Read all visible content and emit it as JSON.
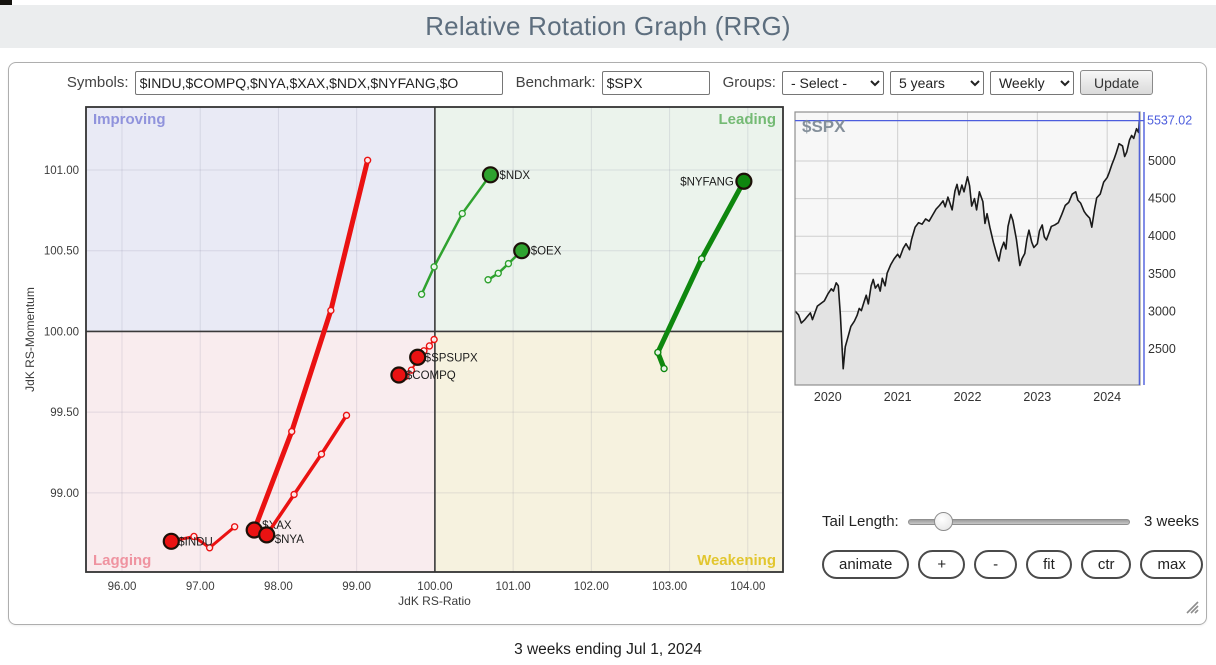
{
  "header": {
    "title": "Relative Rotation Graph (RRG)"
  },
  "toolbar": {
    "symbols_label": "Symbols:",
    "symbols_value": "$INDU,$COMPQ,$NYA,$XAX,$NDX,$NYFANG,$O",
    "benchmark_label": "Benchmark:",
    "benchmark_value": "$SPX",
    "groups_label": "Groups:",
    "groups_value": "- Select -",
    "period_value": "5 years",
    "frequency_value": "Weekly",
    "update_label": "Update"
  },
  "controls": {
    "tail_length_label": "Tail Length:",
    "tail_length_value": "3 weeks",
    "buttons": [
      "animate",
      "+",
      "-",
      "fit",
      "ctr",
      "max"
    ]
  },
  "caption": "3 weeks ending Jul 1, 2024",
  "chart_data": [
    {
      "type": "scatter",
      "title": "Relative Rotation Graph",
      "xlabel": "JdK RS-Ratio",
      "ylabel": "JdK RS-Momentum",
      "xlim": [
        95.54,
        104.45
      ],
      "ylim": [
        98.51,
        101.39
      ],
      "xticks": [
        96,
        97,
        98,
        99,
        100,
        101,
        102,
        103,
        104
      ],
      "yticks": [
        99,
        99.5,
        100,
        100.5,
        101
      ],
      "center": [
        100,
        100
      ],
      "grid": true,
      "quadrants": [
        {
          "name": "improving",
          "label": "Improving",
          "bg": "#e9eaf5",
          "label_color": "#9093dc",
          "corner": "tl"
        },
        {
          "name": "leading",
          "label": "Leading",
          "bg": "#ebf3ec",
          "label_color": "#74ba74",
          "corner": "tr"
        },
        {
          "name": "lagging",
          "label": "Lagging",
          "bg": "#f9ecee",
          "label_color": "#ef93a0",
          "corner": "bl"
        },
        {
          "name": "weakening",
          "label": "Weakening",
          "bg": "#f6f2df",
          "label_color": "#e2c62e",
          "corner": "br"
        }
      ],
      "series": [
        {
          "symbol": "$INDU",
          "color": "#ea1212",
          "width": 3,
          "anchor": "start",
          "label_dx": 7,
          "label_dy": 4,
          "points": [
            [
              97.44,
              98.79
            ],
            [
              97.12,
              98.66
            ],
            [
              96.92,
              98.73
            ],
            [
              96.63,
              98.7
            ]
          ]
        },
        {
          "symbol": "$XAX",
          "color": "#ea1212",
          "width": 5,
          "anchor": "start",
          "label_dx": 8,
          "label_dy": -1,
          "points": [
            [
              99.14,
              101.06
            ],
            [
              98.67,
              100.13
            ],
            [
              98.17,
              99.38
            ],
            [
              97.69,
              98.77
            ]
          ]
        },
        {
          "symbol": "$NYA",
          "color": "#ea1212",
          "width": 3.5,
          "anchor": "start",
          "label_dx": 8,
          "label_dy": 8,
          "points": [
            [
              98.87,
              99.48
            ],
            [
              98.55,
              99.24
            ],
            [
              98.2,
              98.99
            ],
            [
              97.85,
              98.74
            ]
          ]
        },
        {
          "symbol": "$COMPQ",
          "color": "#ea1212",
          "width": 2,
          "anchor": "start",
          "label_dx": 7,
          "label_dy": 4,
          "points": [
            [
              99.76,
              99.81
            ],
            [
              99.7,
              99.76
            ],
            [
              99.62,
              99.72
            ],
            [
              99.54,
              99.73
            ]
          ]
        },
        {
          "symbol": "$SPSUPX",
          "color": "#ea1212",
          "width": 2,
          "anchor": "start",
          "label_dx": 7,
          "label_dy": 4,
          "points": [
            [
              99.99,
              99.95
            ],
            [
              99.93,
              99.91
            ],
            [
              99.86,
              99.88
            ],
            [
              99.78,
              99.84
            ]
          ]
        },
        {
          "symbol": "$NDX",
          "color": "#2fa22f",
          "width": 2.5,
          "anchor": "start",
          "label_dx": 9,
          "label_dy": 4,
          "points": [
            [
              99.83,
              100.23
            ],
            [
              99.99,
              100.4
            ],
            [
              100.35,
              100.73
            ],
            [
              100.71,
              100.97
            ]
          ]
        },
        {
          "symbol": "$OEX",
          "color": "#2fa22f",
          "width": 2.5,
          "anchor": "start",
          "label_dx": 9,
          "label_dy": 4,
          "points": [
            [
              100.68,
              100.32
            ],
            [
              100.81,
              100.36
            ],
            [
              100.94,
              100.42
            ],
            [
              101.11,
              100.5
            ]
          ]
        },
        {
          "symbol": "$NYFANG",
          "color": "#0e870e",
          "width": 5,
          "anchor": "end",
          "label_dx": -10,
          "label_dy": 4,
          "points": [
            [
              102.93,
              99.77
            ],
            [
              102.85,
              99.87
            ],
            [
              103.41,
              100.45
            ],
            [
              103.95,
              100.93
            ]
          ]
        }
      ]
    },
    {
      "type": "area",
      "symbol": "$SPX",
      "price_label": "5537.02",
      "last_price": 5537.02,
      "xticks": [
        2020,
        2021,
        2022,
        2023,
        2024
      ],
      "yticks": [
        2500,
        3000,
        3500,
        4000,
        4500,
        5000
      ],
      "xlim": [
        2019.53,
        2024.47
      ],
      "ylim": [
        2021,
        5652
      ],
      "grid": true,
      "line_color": "#1a1a1a",
      "fill_color": "#e3e3e3",
      "crosshair_color": "#4c5ddd",
      "points": [
        [
          2019.53,
          3005
        ],
        [
          2019.58,
          2955
        ],
        [
          2019.62,
          2845
        ],
        [
          2019.67,
          2890
        ],
        [
          2019.7,
          2925
        ],
        [
          2019.75,
          2980
        ],
        [
          2019.78,
          2890
        ],
        [
          2019.85,
          3070
        ],
        [
          2019.95,
          3140
        ],
        [
          2020.0,
          3230
        ],
        [
          2020.05,
          3300
        ],
        [
          2020.08,
          3270
        ],
        [
          2020.12,
          3380
        ],
        [
          2020.15,
          3340
        ],
        [
          2020.18,
          2950
        ],
        [
          2020.22,
          2237
        ],
        [
          2020.25,
          2530
        ],
        [
          2020.28,
          2630
        ],
        [
          2020.33,
          2800
        ],
        [
          2020.38,
          2870
        ],
        [
          2020.42,
          2950
        ],
        [
          2020.45,
          3040
        ],
        [
          2020.48,
          3010
        ],
        [
          2020.52,
          3130
        ],
        [
          2020.55,
          3215
        ],
        [
          2020.58,
          3100
        ],
        [
          2020.62,
          3340
        ],
        [
          2020.65,
          3425
        ],
        [
          2020.68,
          3310
        ],
        [
          2020.72,
          3360
        ],
        [
          2020.75,
          3270
        ],
        [
          2020.78,
          3440
        ],
        [
          2020.82,
          3340
        ],
        [
          2020.85,
          3510
        ],
        [
          2020.9,
          3620
        ],
        [
          2020.95,
          3700
        ],
        [
          2021.0,
          3760
        ],
        [
          2021.03,
          3715
        ],
        [
          2021.08,
          3840
        ],
        [
          2021.12,
          3900
        ],
        [
          2021.17,
          3820
        ],
        [
          2021.2,
          3960
        ],
        [
          2021.25,
          4120
        ],
        [
          2021.3,
          4180
        ],
        [
          2021.35,
          4160
        ],
        [
          2021.4,
          4230
        ],
        [
          2021.45,
          4200
        ],
        [
          2021.5,
          4280
        ],
        [
          2021.55,
          4360
        ],
        [
          2021.6,
          4410
        ],
        [
          2021.65,
          4470
        ],
        [
          2021.68,
          4390
        ],
        [
          2021.72,
          4520
        ],
        [
          2021.78,
          4350
        ],
        [
          2021.82,
          4600
        ],
        [
          2021.85,
          4690
        ],
        [
          2021.88,
          4550
        ],
        [
          2021.92,
          4680
        ],
        [
          2021.95,
          4590
        ],
        [
          2022.0,
          4790
        ],
        [
          2022.03,
          4670
        ],
        [
          2022.06,
          4400
        ],
        [
          2022.1,
          4500
        ],
        [
          2022.13,
          4350
        ],
        [
          2022.17,
          4590
        ],
        [
          2022.22,
          4460
        ],
        [
          2022.25,
          4170
        ],
        [
          2022.28,
          4300
        ],
        [
          2022.32,
          4120
        ],
        [
          2022.37,
          3920
        ],
        [
          2022.42,
          3750
        ],
        [
          2022.45,
          3670
        ],
        [
          2022.48,
          3820
        ],
        [
          2022.52,
          3920
        ],
        [
          2022.55,
          3830
        ],
        [
          2022.58,
          4130
        ],
        [
          2022.62,
          4290
        ],
        [
          2022.65,
          4210
        ],
        [
          2022.7,
          3960
        ],
        [
          2022.75,
          3610
        ],
        [
          2022.78,
          3700
        ],
        [
          2022.82,
          3770
        ],
        [
          2022.85,
          3960
        ],
        [
          2022.88,
          4080
        ],
        [
          2022.92,
          3920
        ],
        [
          2022.95,
          3850
        ],
        [
          2023.0,
          3900
        ],
        [
          2023.03,
          4070
        ],
        [
          2023.07,
          4150
        ],
        [
          2023.1,
          3990
        ],
        [
          2023.13,
          3950
        ],
        [
          2023.17,
          4050
        ],
        [
          2023.2,
          4130
        ],
        [
          2023.25,
          4150
        ],
        [
          2023.3,
          4180
        ],
        [
          2023.35,
          4290
        ],
        [
          2023.4,
          4410
        ],
        [
          2023.45,
          4450
        ],
        [
          2023.5,
          4560
        ],
        [
          2023.55,
          4590
        ],
        [
          2023.58,
          4480
        ],
        [
          2023.62,
          4440
        ],
        [
          2023.67,
          4330
        ],
        [
          2023.7,
          4290
        ],
        [
          2023.75,
          4240
        ],
        [
          2023.78,
          4120
        ],
        [
          2023.82,
          4360
        ],
        [
          2023.85,
          4510
        ],
        [
          2023.9,
          4560
        ],
        [
          2023.95,
          4720
        ],
        [
          2024.0,
          4780
        ],
        [
          2024.03,
          4850
        ],
        [
          2024.07,
          4960
        ],
        [
          2024.1,
          5030
        ],
        [
          2024.13,
          5110
        ],
        [
          2024.17,
          5230
        ],
        [
          2024.22,
          5200
        ],
        [
          2024.25,
          5060
        ],
        [
          2024.28,
          5120
        ],
        [
          2024.32,
          5280
        ],
        [
          2024.35,
          5340
        ],
        [
          2024.38,
          5300
        ],
        [
          2024.42,
          5430
        ],
        [
          2024.45,
          5380
        ],
        [
          2024.46,
          5537
        ]
      ]
    }
  ]
}
